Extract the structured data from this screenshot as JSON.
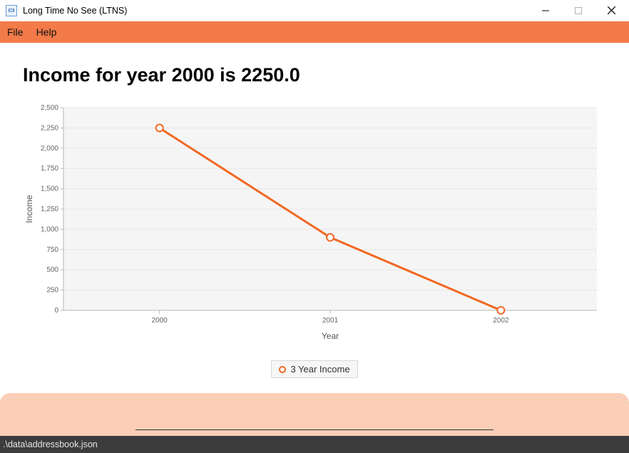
{
  "window": {
    "title": "Long Time No See (LTNS)",
    "icon_glyph": "⎚"
  },
  "menubar": {
    "bg_color": "#f37a49",
    "items": [
      "File",
      "Help"
    ]
  },
  "heading": "Income for year 2000 is 2250.0",
  "chart": {
    "type": "line",
    "series_name": "3 Year Income",
    "x_label": "Year",
    "y_label": "Income",
    "categories": [
      "2000",
      "2001",
      "2002"
    ],
    "values": [
      2250,
      900,
      0
    ],
    "ylim": [
      0,
      2500
    ],
    "ytick_step": 250,
    "plot_bg": "#f5f5f5",
    "grid_color": "#e7e7e7",
    "axis_color": "#b7b7b7",
    "line_color": "#f26722",
    "line_width": 3,
    "marker_radius": 5,
    "marker_stroke": "#f26722",
    "marker_fill": "#ffffff",
    "tick_font_size": 10,
    "label_font_size": 12
  },
  "peach_panel": {
    "bg_color": "#fbcfb7"
  },
  "statusbar": {
    "text": ".\\data\\addressbook.json",
    "bg_color": "#3c3c3c"
  }
}
